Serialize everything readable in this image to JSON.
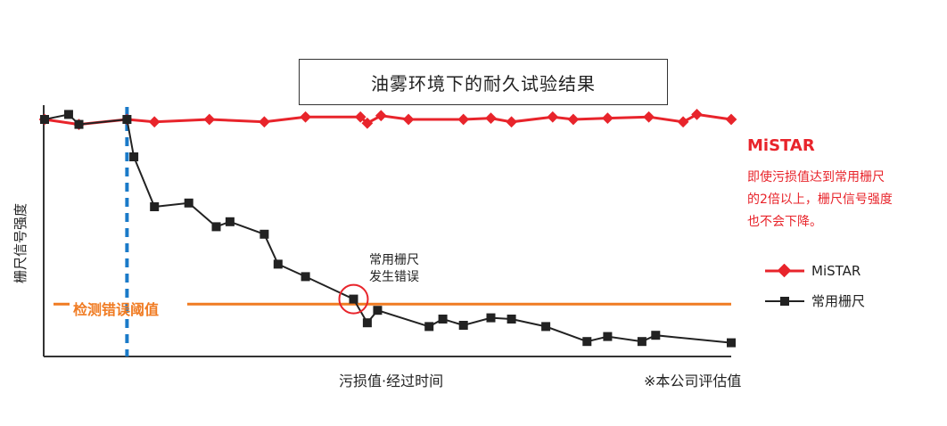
{
  "title": "油雾环境下的耐久试验结果",
  "ylabel": "栅尺信号强度",
  "xlabel": "污损值·经过时间",
  "footnote": "※本公司评估值",
  "threshold_label": "检测错误阈值",
  "mistar_label": "MiSTAR",
  "mistar_note": [
    "即使污损值达到常用栅尺",
    "的2倍以上，栅尺信号强度",
    "也不会下降。"
  ],
  "callout": [
    "常用栅尺",
    "发生错误"
  ],
  "legend": [
    {
      "name": "MiSTAR",
      "color": "#e8242b",
      "marker": "diamond"
    },
    {
      "name": "常用栅尺",
      "color": "#222222",
      "marker": "square"
    }
  ],
  "chart_data": {
    "type": "line",
    "title": "油雾环境下的耐久试验结果",
    "xlabel": "污损值·经过时间",
    "ylabel": "栅尺信号强度",
    "xlim": [
      0,
      100
    ],
    "ylim": [
      0,
      100
    ],
    "ticks": "none",
    "threshold": {
      "label": "检测错误阈值",
      "value": 21,
      "color": "#f07b22"
    },
    "reference_line": {
      "x": 12,
      "style": "dashed",
      "color": "#1a7ac8"
    },
    "series": [
      {
        "name": "MiSTAR",
        "color": "#e8242b",
        "marker": "diamond",
        "x": [
          0,
          5,
          12,
          16,
          24,
          32,
          38,
          46,
          47,
          49,
          53,
          61,
          65,
          68,
          74,
          77,
          82,
          88,
          93,
          95,
          100
        ],
        "y": [
          95,
          93,
          95,
          94,
          95,
          94,
          96,
          96,
          93.5,
          96.5,
          95,
          95,
          95.5,
          94,
          96,
          95,
          95.5,
          96,
          94,
          97,
          95
        ]
      },
      {
        "name": "常用栅尺",
        "color": "#222222",
        "marker": "square",
        "x": [
          0,
          3.5,
          5,
          12,
          13,
          16,
          21,
          25,
          27,
          32,
          34,
          38,
          45,
          47,
          48.5,
          56,
          58,
          61,
          65,
          68,
          73,
          79,
          82,
          87,
          89,
          100
        ],
        "y": [
          95,
          97,
          93,
          95,
          80,
          60,
          61.5,
          52,
          54,
          49,
          37,
          32,
          23,
          13.5,
          18.5,
          12,
          15,
          12.5,
          15.5,
          15,
          12,
          6,
          8,
          6,
          8.5,
          5.5
        ]
      }
    ]
  }
}
